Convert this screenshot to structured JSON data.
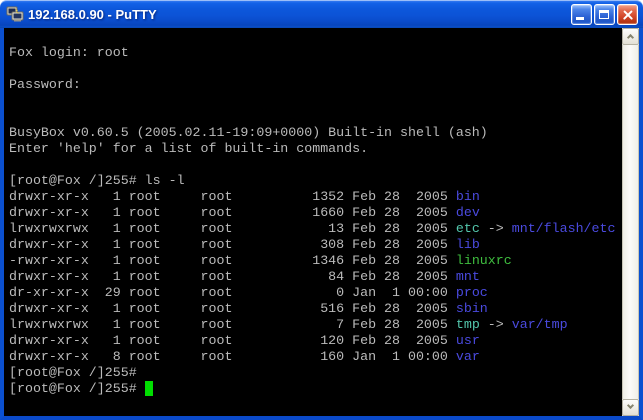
{
  "window": {
    "title": "192.168.0.90 - PuTTY",
    "app_icon": "putty-two-terminals-icon",
    "controls": {
      "minimize_icon": "minimize-icon",
      "maximize_icon": "maximize-icon",
      "close_icon": "close-icon"
    }
  },
  "colors": {
    "terminal_bg": "#000000",
    "foreground": "#bbbbbb",
    "directory_blue": "#4a4adf",
    "symlink_cyan": "#53c6ac",
    "executable_green": "#3fbe3f",
    "cursor_green": "#00de00",
    "window_border_blue": "#0b50d0",
    "titlebar_blue": "#0d58dc",
    "close_button_red": "#d14426"
  },
  "scrollbar": {
    "up_icon": "chevron-up-icon",
    "down_icon": "chevron-down-icon"
  },
  "terminal": {
    "lines": [
      [
        {
          "t": "Fox login: root",
          "c": "fg"
        }
      ],
      [],
      [
        {
          "t": "Password:",
          "c": "fg"
        }
      ],
      [],
      [],
      [
        {
          "t": "BusyBox v0.60.5 (2005.02.11-19:09+0000) Built-in shell (ash)",
          "c": "fg"
        }
      ],
      [
        {
          "t": "Enter 'help' for a list of built-in commands.",
          "c": "fg"
        }
      ],
      [],
      [
        {
          "t": "[root@Fox /]255# ls -l",
          "c": "fg"
        }
      ],
      [
        {
          "t": "drwxr-xr-x   1 root     root          1352 Feb 28  2005 ",
          "c": "fg"
        },
        {
          "t": "bin",
          "c": "dir"
        }
      ],
      [
        {
          "t": "drwxr-xr-x   1 root     root          1660 Feb 28  2005 ",
          "c": "fg"
        },
        {
          "t": "dev",
          "c": "dir"
        }
      ],
      [
        {
          "t": "lrwxrwxrwx   1 root     root            13 Feb 28  2005 ",
          "c": "fg"
        },
        {
          "t": "etc",
          "c": "link"
        },
        {
          "t": " -> ",
          "c": "fg"
        },
        {
          "t": "mnt/flash/etc",
          "c": "dir"
        }
      ],
      [
        {
          "t": "drwxr-xr-x   1 root     root           308 Feb 28  2005 ",
          "c": "fg"
        },
        {
          "t": "lib",
          "c": "dir"
        }
      ],
      [
        {
          "t": "-rwxr-xr-x   1 root     root          1346 Feb 28  2005 ",
          "c": "fg"
        },
        {
          "t": "linuxrc",
          "c": "exec"
        }
      ],
      [
        {
          "t": "drwxr-xr-x   1 root     root            84 Feb 28  2005 ",
          "c": "fg"
        },
        {
          "t": "mnt",
          "c": "dir"
        }
      ],
      [
        {
          "t": "dr-xr-xr-x  29 root     root             0 Jan  1 00:00 ",
          "c": "fg"
        },
        {
          "t": "proc",
          "c": "dir"
        }
      ],
      [
        {
          "t": "drwxr-xr-x   1 root     root           516 Feb 28  2005 ",
          "c": "fg"
        },
        {
          "t": "sbin",
          "c": "dir"
        }
      ],
      [
        {
          "t": "lrwxrwxrwx   1 root     root             7 Feb 28  2005 ",
          "c": "fg"
        },
        {
          "t": "tmp",
          "c": "link"
        },
        {
          "t": " -> ",
          "c": "fg"
        },
        {
          "t": "var/tmp",
          "c": "dir"
        }
      ],
      [
        {
          "t": "drwxr-xr-x   1 root     root           120 Feb 28  2005 ",
          "c": "fg"
        },
        {
          "t": "usr",
          "c": "dir"
        }
      ],
      [
        {
          "t": "drwxr-xr-x   8 root     root           160 Jan  1 00:00 ",
          "c": "fg"
        },
        {
          "t": "var",
          "c": "dir"
        }
      ],
      [
        {
          "t": "[root@Fox /]255#",
          "c": "fg"
        }
      ],
      [
        {
          "t": "[root@Fox /]255# ",
          "c": "fg"
        },
        {
          "t": " ",
          "c": "cursor"
        }
      ]
    ]
  }
}
